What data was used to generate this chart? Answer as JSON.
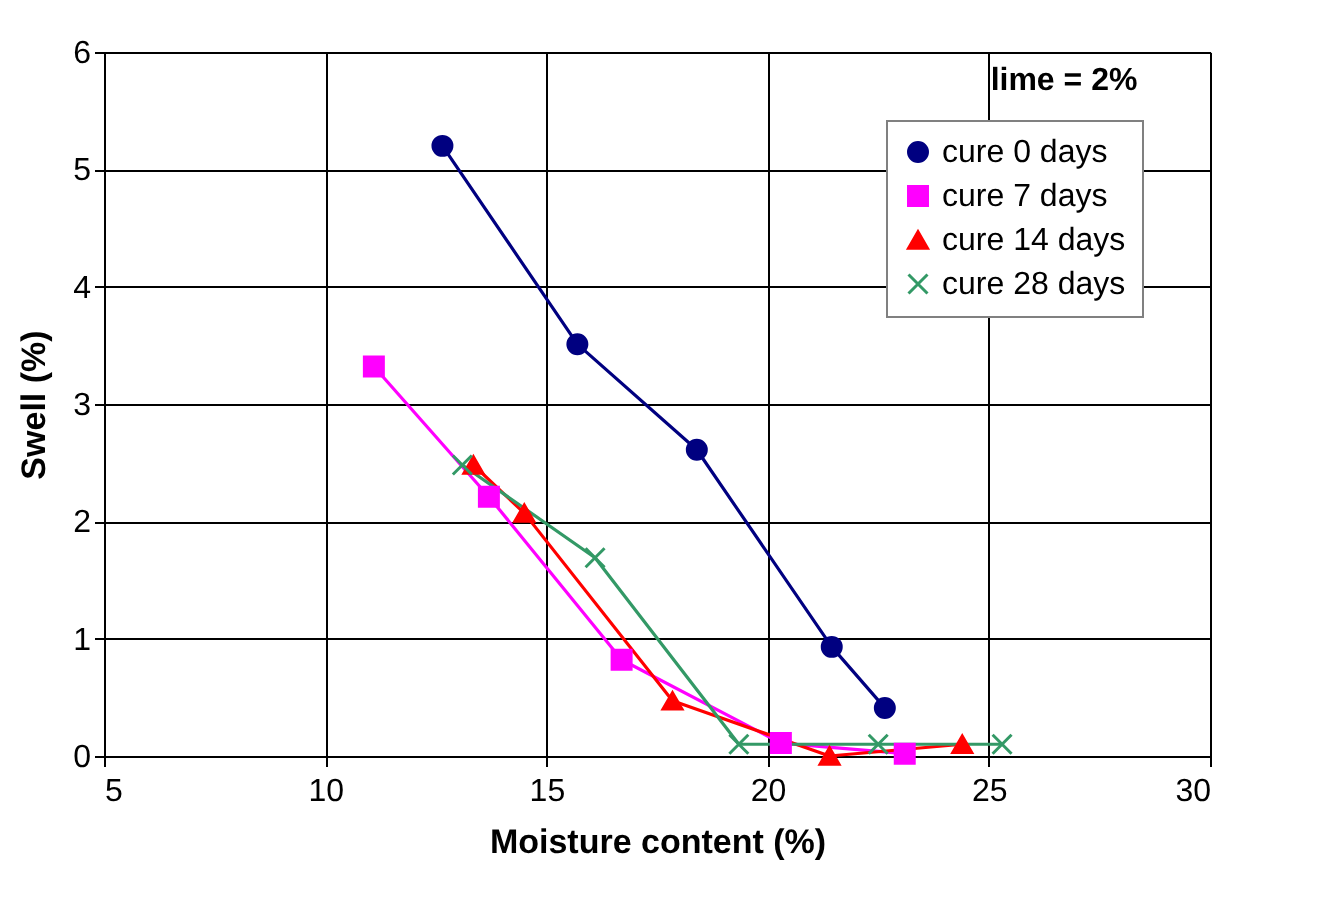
{
  "chart_data": {
    "type": "line",
    "xlabel": "Moisture content (%)",
    "ylabel": "Swell (%)",
    "xlim": [
      5,
      30
    ],
    "xticks": [
      5,
      10,
      15,
      20,
      25,
      30
    ],
    "ylim": [
      0,
      6
    ],
    "yticks": [
      0,
      1,
      2,
      3,
      4,
      5,
      6
    ],
    "grid": true,
    "legend": "top right",
    "line_style": "solid",
    "annotations": [
      "lime = 2%"
    ],
    "series": [
      {
        "name": "cure 0 days",
        "color": "#000080",
        "marker": "circle",
        "x": [
          12.65,
          15.7,
          18.4,
          21.45,
          22.65
        ],
        "values": [
          5.2,
          3.51,
          2.61,
          0.93,
          0.41
        ]
      },
      {
        "name": "cure 7 days",
        "color": "#ff00ff",
        "marker": "square",
        "x": [
          11.1,
          13.7,
          16.7,
          20.3,
          23.1
        ],
        "values": [
          3.32,
          2.21,
          0.82,
          0.11,
          0.02
        ]
      },
      {
        "name": "cure 14 days",
        "color": "#ff0000",
        "marker": "triangle",
        "x": [
          13.35,
          14.5,
          17.85,
          21.4,
          24.4
        ],
        "values": [
          2.48,
          2.07,
          0.47,
          0.0,
          0.1
        ]
      },
      {
        "name": "cure 28 days",
        "color": "#339966",
        "marker": "cross",
        "x": [
          13.1,
          16.1,
          19.35,
          22.5,
          25.3
        ],
        "values": [
          2.48,
          1.69,
          0.1,
          0.1,
          0.1
        ]
      }
    ]
  }
}
